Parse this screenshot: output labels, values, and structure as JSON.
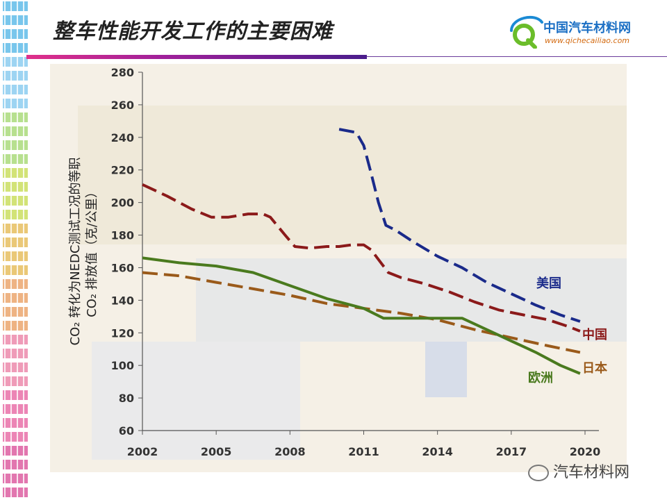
{
  "slide": {
    "title": "整车性能开发工作的主要困难"
  },
  "logo": {
    "main_text": "中国汽车材料网",
    "sub_text": "www.qichecailiao.com",
    "icon": "q-letter-logo-icon"
  },
  "watermark": {
    "text": "汽车材料网",
    "icon": "wechat-icon"
  },
  "colors": {
    "usa": "#1a2a8a",
    "china": "#8b1a1a",
    "japan": "#9a5a1a",
    "europe": "#4a7a1e",
    "accent_bar": "#e0308a"
  },
  "chart_data": {
    "type": "line",
    "ylabel_line1": "CO₂ 转化为NEDC测试工况的等职",
    "ylabel_line2": "CO₂ 排放值（克/公里）",
    "xlim": [
      2002,
      2020
    ],
    "ylim": [
      60,
      280
    ],
    "xticks": [
      "2002",
      "2005",
      "2008",
      "2011",
      "2014",
      "2017",
      "2020"
    ],
    "yticks": [
      "60",
      "80",
      "100",
      "120",
      "140",
      "160",
      "180",
      "200",
      "220",
      "240",
      "260",
      "280"
    ],
    "grid": false,
    "series": [
      {
        "name": "美国",
        "style": "dashed",
        "color": "#1a2a8a",
        "points": [
          [
            2010.0,
            245
          ],
          [
            2010.7,
            243
          ],
          [
            2011.0,
            235
          ],
          [
            2011.3,
            218
          ],
          [
            2011.6,
            200
          ],
          [
            2011.9,
            186
          ],
          [
            2012.3,
            183
          ],
          [
            2013.0,
            176
          ],
          [
            2014.0,
            167
          ],
          [
            2015.0,
            160
          ],
          [
            2016.0,
            151
          ],
          [
            2017.0,
            144
          ],
          [
            2018.0,
            137
          ],
          [
            2019.0,
            131
          ],
          [
            2019.8,
            127
          ]
        ]
      },
      {
        "name": "中国",
        "style": "dashed",
        "color": "#8b1a1a",
        "points": [
          [
            2002.0,
            211
          ],
          [
            2003.0,
            204
          ],
          [
            2004.0,
            196
          ],
          [
            2004.8,
            191
          ],
          [
            2005.5,
            191
          ],
          [
            2006.3,
            193
          ],
          [
            2006.9,
            193
          ],
          [
            2007.2,
            191
          ],
          [
            2007.8,
            180
          ],
          [
            2008.2,
            173
          ],
          [
            2008.8,
            172
          ],
          [
            2009.5,
            173
          ],
          [
            2010.0,
            173
          ],
          [
            2010.5,
            174
          ],
          [
            2011.0,
            174
          ],
          [
            2011.3,
            171
          ],
          [
            2011.7,
            163
          ],
          [
            2012.0,
            157
          ],
          [
            2012.5,
            154
          ],
          [
            2013.5,
            150
          ],
          [
            2014.5,
            145
          ],
          [
            2015.5,
            139
          ],
          [
            2016.5,
            134
          ],
          [
            2017.5,
            131
          ],
          [
            2018.5,
            128
          ],
          [
            2019.3,
            124
          ],
          [
            2019.8,
            121
          ]
        ]
      },
      {
        "name": "日本",
        "style": "dashed",
        "color": "#9a5a1a",
        "points": [
          [
            2002.0,
            157
          ],
          [
            2003.5,
            155
          ],
          [
            2005.0,
            151
          ],
          [
            2006.5,
            147
          ],
          [
            2008.0,
            143
          ],
          [
            2009.5,
            138
          ],
          [
            2011.0,
            135
          ],
          [
            2012.5,
            132
          ],
          [
            2014.0,
            128
          ],
          [
            2015.5,
            122
          ],
          [
            2017.0,
            117
          ],
          [
            2018.5,
            112
          ],
          [
            2019.8,
            108
          ]
        ]
      },
      {
        "name": "欧洲",
        "style": "solid",
        "color": "#4a7a1e",
        "points": [
          [
            2002.0,
            166
          ],
          [
            2003.5,
            163
          ],
          [
            2005.0,
            161
          ],
          [
            2006.5,
            157
          ],
          [
            2008.0,
            149
          ],
          [
            2009.5,
            141
          ],
          [
            2011.0,
            135
          ],
          [
            2011.8,
            129
          ],
          [
            2013.0,
            129
          ],
          [
            2014.0,
            129
          ],
          [
            2015.0,
            129
          ],
          [
            2016.0,
            122
          ],
          [
            2017.0,
            115
          ],
          [
            2018.0,
            108
          ],
          [
            2019.0,
            100
          ],
          [
            2019.8,
            95
          ]
        ]
      }
    ],
    "label_positions_hint": "labels placed at right end of each series"
  }
}
